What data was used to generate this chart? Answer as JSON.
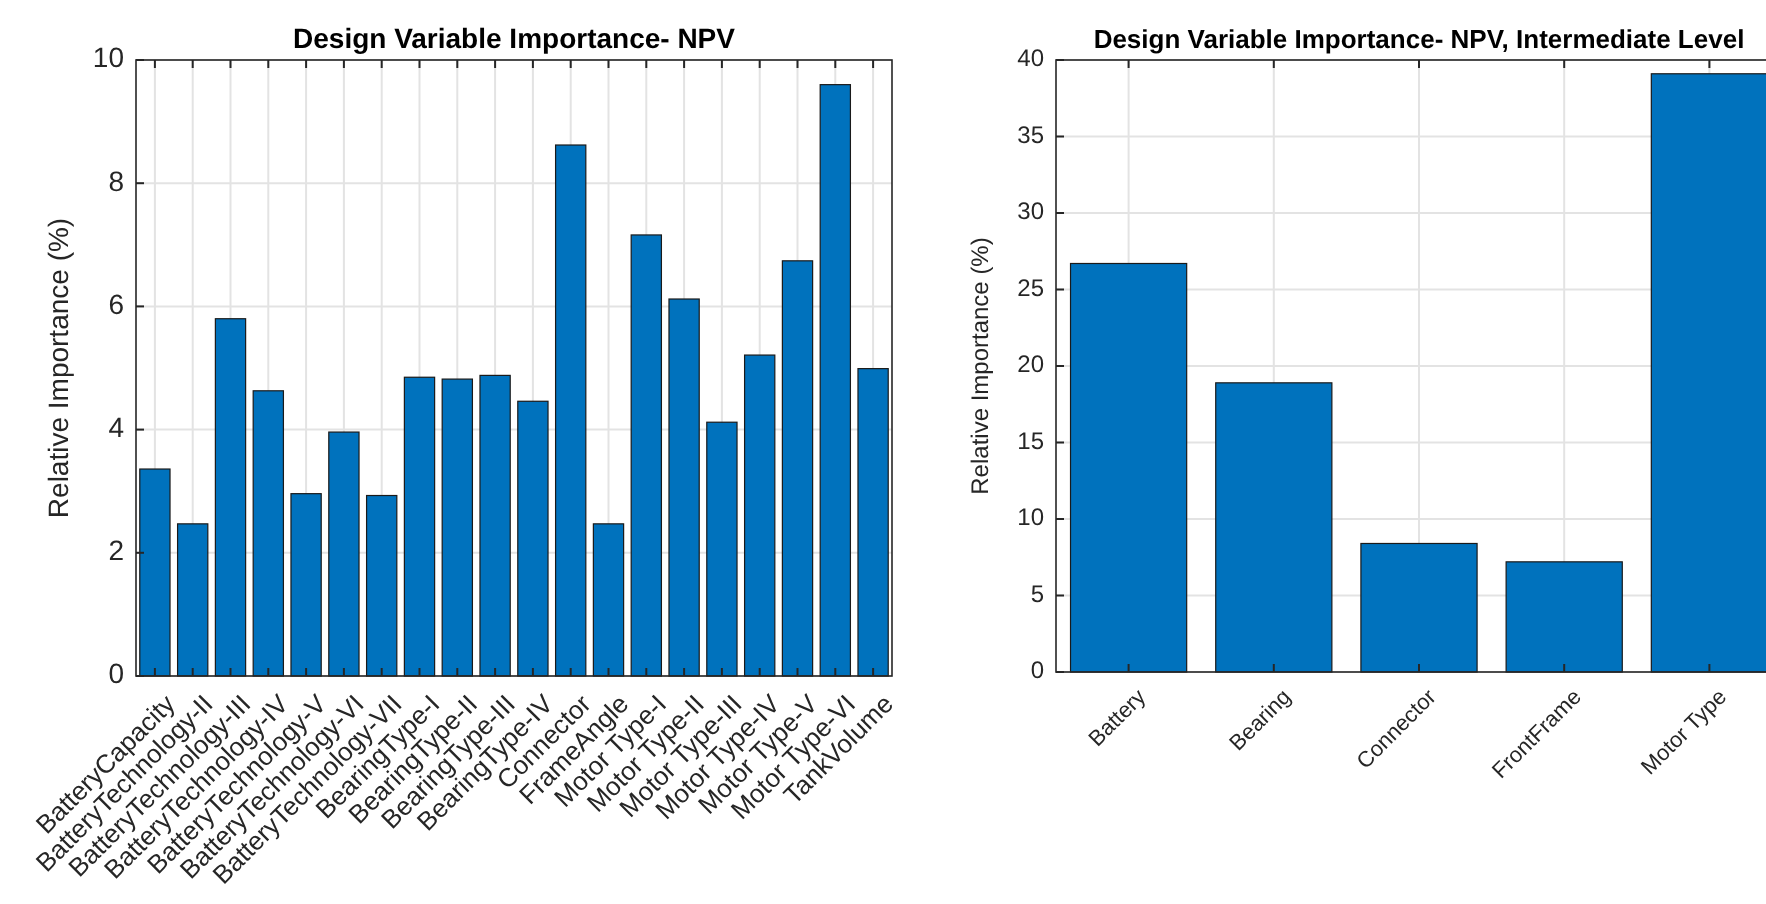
{
  "chart_data": [
    {
      "type": "bar",
      "title": "Design Variable Importance- NPV",
      "ylabel": "Relative Importance (%)",
      "categories": [
        "BatteryCapacity",
        "BatteryTechnology-II",
        "BatteryTechnology-III",
        "BatteryTechnology-IV",
        "BatteryTechnology-V",
        "BatteryTechnology-VI",
        "BatteryTechnology-VII",
        "BearingType-I",
        "BearingType-II",
        "BearingType-III",
        "BearingType-IV",
        "Connector",
        "FrameAngle",
        "Motor Type-I",
        "Motor Type-II",
        "Motor Type-III",
        "Motor Type-IV",
        "Motor Type-V",
        "Motor Type-VI",
        "TankVolume"
      ],
      "values": [
        3.36,
        2.47,
        5.8,
        4.63,
        2.96,
        3.96,
        2.93,
        4.85,
        4.82,
        4.88,
        4.46,
        8.62,
        2.47,
        7.16,
        6.12,
        4.12,
        5.21,
        6.74,
        9.6,
        4.99
      ],
      "color": "#0072bd",
      "ylim": [
        0,
        10
      ],
      "yticks": [
        0,
        2,
        4,
        6,
        8,
        10
      ],
      "grid": true
    },
    {
      "type": "bar",
      "title": "Design Variable Importance- NPV, Intermediate Level",
      "ylabel": "Relative Importance (%)",
      "categories": [
        "Battery",
        "Bearing",
        "Connector",
        "FrontFrame",
        "Motor Type"
      ],
      "values": [
        26.7,
        18.9,
        8.4,
        7.2,
        39.1
      ],
      "color": "#0072bd",
      "ylim": [
        0,
        40
      ],
      "yticks": [
        0,
        5,
        10,
        15,
        20,
        25,
        30,
        35,
        40
      ],
      "grid": true
    }
  ]
}
